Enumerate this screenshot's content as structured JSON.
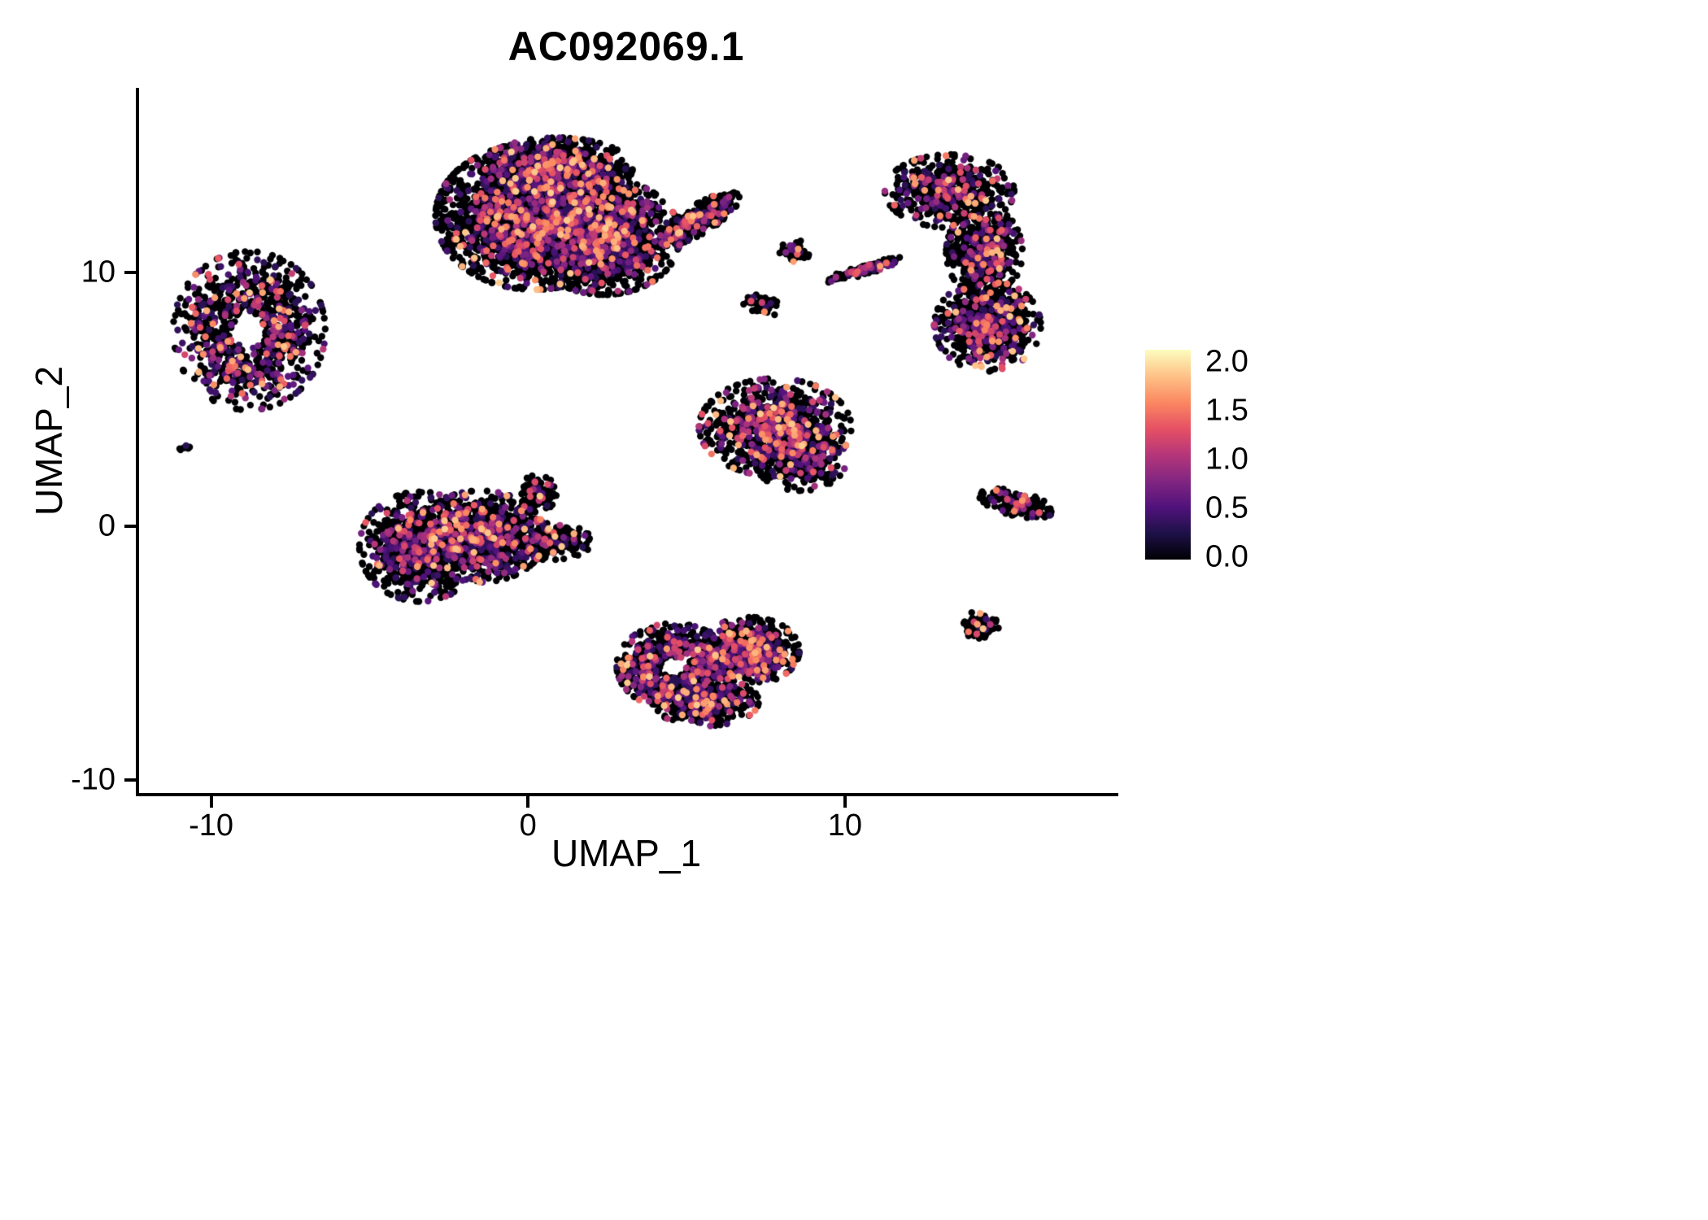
{
  "chart_data": {
    "type": "scatter",
    "title": "AC092069.1",
    "xlabel": "UMAP_1",
    "ylabel": "UMAP_2",
    "xlim": [
      -12.3,
      18.5
    ],
    "ylim": [
      -10.5,
      17.2
    ],
    "x_ticks": [
      -10,
      0,
      10
    ],
    "y_ticks": [
      -10,
      0,
      10
    ],
    "grid": false,
    "background": "#ffffff",
    "axis_color": "#000000",
    "point_radius_px": 4.2,
    "seed": 42,
    "colorbar": {
      "min": 0.0,
      "max": 2.0,
      "ticks": [
        0.0,
        0.5,
        1.0,
        1.5,
        2.0
      ],
      "tick_labels": [
        "0.0",
        "0.5",
        "1.0",
        "1.5",
        "2.0"
      ],
      "colormap": "magma",
      "stops": [
        {
          "t": 0.0,
          "color": "#000004"
        },
        {
          "t": 0.125,
          "color": "#1d1147"
        },
        {
          "t": 0.25,
          "color": "#51127c"
        },
        {
          "t": 0.375,
          "color": "#822681"
        },
        {
          "t": 0.5,
          "color": "#b63679"
        },
        {
          "t": 0.625,
          "color": "#e65164"
        },
        {
          "t": 0.75,
          "color": "#fb8861"
        },
        {
          "t": 0.875,
          "color": "#fec287"
        },
        {
          "t": 1.0,
          "color": "#fcfdbf"
        }
      ]
    },
    "clusters": [
      {
        "name": "top-central-a",
        "cx": 0.2,
        "cy": 12.2,
        "sx": 1.3,
        "sy": 1.2,
        "n": 2600,
        "frac": 0.24
      },
      {
        "name": "top-central-b",
        "cx": 2.4,
        "cy": 11.4,
        "sx": 1.0,
        "sy": 0.95,
        "n": 1800,
        "frac": 0.24
      },
      {
        "name": "top-central-c",
        "cx": 0.9,
        "cy": 14.1,
        "sx": 1.0,
        "sy": 0.5,
        "n": 900,
        "frac": 0.2
      },
      {
        "name": "top-central-arm",
        "cx": 5.4,
        "cy": 12.1,
        "sx": 0.65,
        "sy": 0.22,
        "rot": 0.67,
        "n": 420,
        "frac": 0.2
      },
      {
        "name": "left-ring",
        "cx": -8.8,
        "cy": 7.7,
        "sx": 1.0,
        "sy": 1.3,
        "n": 900,
        "frac": 0.3,
        "hole": 0.45
      },
      {
        "name": "left-tiny",
        "cx": -10.8,
        "cy": 3.1,
        "sx": 0.1,
        "sy": 0.1,
        "n": 8,
        "frac": 0.3
      },
      {
        "name": "right-crescent-top",
        "cx": 13.3,
        "cy": 13.2,
        "sx": 0.85,
        "sy": 0.6,
        "n": 600,
        "frac": 0.2
      },
      {
        "name": "right-crescent-mid",
        "cx": 14.4,
        "cy": 10.8,
        "sx": 0.5,
        "sy": 0.75,
        "n": 600,
        "frac": 0.22
      },
      {
        "name": "right-crescent-bot",
        "cx": 14.5,
        "cy": 7.9,
        "sx": 0.7,
        "sy": 0.75,
        "n": 750,
        "frac": 0.25
      },
      {
        "name": "mid-clump-a",
        "cx": 8.4,
        "cy": 10.8,
        "sx": 0.2,
        "sy": 0.2,
        "n": 60,
        "frac": 0.15
      },
      {
        "name": "mid-streak",
        "cx": 10.6,
        "cy": 10.1,
        "sx": 0.55,
        "sy": 0.08,
        "rot": 0.35,
        "n": 130,
        "frac": 0.25
      },
      {
        "name": "mid-clump-b",
        "cx": 7.4,
        "cy": 8.7,
        "sx": 0.25,
        "sy": 0.2,
        "n": 70,
        "frac": 0.1
      },
      {
        "name": "middle-fan",
        "cx": 7.8,
        "cy": 3.9,
        "sx": 1.0,
        "sy": 0.8,
        "n": 1000,
        "frac": 0.3
      },
      {
        "name": "middle-fan-lower",
        "cx": 8.6,
        "cy": 2.6,
        "sx": 0.6,
        "sy": 0.5,
        "n": 300,
        "frac": 0.28
      },
      {
        "name": "center-left-a",
        "cx": -3.4,
        "cy": -0.8,
        "sx": 0.8,
        "sy": 0.9,
        "n": 900,
        "frac": 0.26
      },
      {
        "name": "center-left-b",
        "cx": -1.5,
        "cy": -0.4,
        "sx": 0.85,
        "sy": 0.75,
        "n": 950,
        "frac": 0.28
      },
      {
        "name": "center-left-tip",
        "cx": 0.7,
        "cy": -0.6,
        "sx": 0.55,
        "sy": 0.3,
        "n": 300,
        "frac": 0.2
      },
      {
        "name": "center-left-spur",
        "cx": 0.3,
        "cy": 1.3,
        "sx": 0.25,
        "sy": 0.3,
        "n": 120,
        "frac": 0.15
      },
      {
        "name": "bottom-ring",
        "cx": 4.6,
        "cy": -5.5,
        "sx": 0.75,
        "sy": 0.7,
        "n": 800,
        "frac": 0.3,
        "hole": 0.5
      },
      {
        "name": "bottom-b",
        "cx": 7.0,
        "cy": -4.9,
        "sx": 0.65,
        "sy": 0.55,
        "n": 700,
        "frac": 0.3
      },
      {
        "name": "bottom-c",
        "cx": 5.6,
        "cy": -6.9,
        "sx": 0.7,
        "sy": 0.4,
        "n": 420,
        "frac": 0.28
      },
      {
        "name": "right-small-arrow",
        "cx": 15.4,
        "cy": 0.9,
        "sx": 0.5,
        "sy": 0.2,
        "rot": -0.3,
        "n": 190,
        "frac": 0.2
      },
      {
        "name": "bottom-right-clump",
        "cx": 14.3,
        "cy": -3.9,
        "sx": 0.23,
        "sy": 0.25,
        "n": 90,
        "frac": 0.15
      }
    ]
  }
}
